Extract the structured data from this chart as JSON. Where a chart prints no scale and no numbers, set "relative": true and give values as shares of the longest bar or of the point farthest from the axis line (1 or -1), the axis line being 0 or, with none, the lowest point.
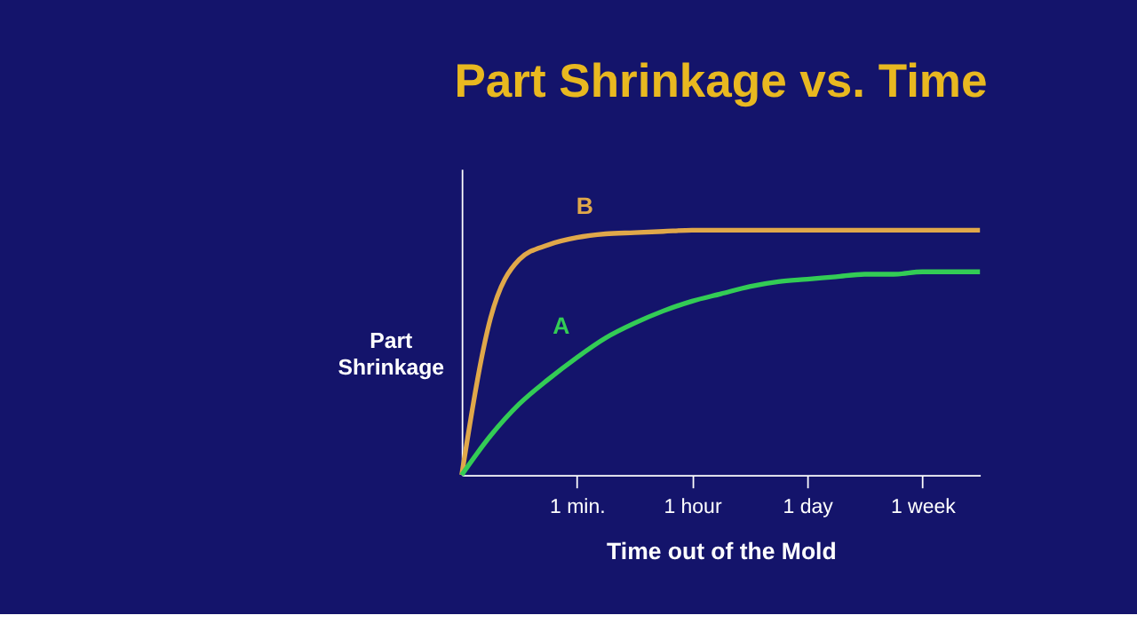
{
  "chart_data": {
    "type": "line",
    "title": "Part Shrinkage vs. Time",
    "xlabel": "Time out of the Mold",
    "ylabel": "Part Shrinkage",
    "relative": true,
    "legend": false,
    "grid": false,
    "marker": "none",
    "line_style": "solid",
    "categories": [
      null,
      null,
      null,
      null,
      "1 min.",
      null,
      null,
      null,
      "1 hour",
      null,
      null,
      null,
      "1 day",
      null,
      null,
      null,
      "1 week",
      null,
      null
    ],
    "series": [
      {
        "name": "B",
        "color": "#e0a84a",
        "values": [
          0,
          0.64,
          0.88,
          0.94,
          0.97,
          0.985,
          0.99,
          0.995,
          1,
          1,
          1,
          1,
          1,
          1,
          1,
          1,
          1,
          1,
          1
        ]
      },
      {
        "name": "A",
        "color": "#33cc55",
        "values": [
          0,
          0.16,
          0.29,
          0.39,
          0.48,
          0.56,
          0.62,
          0.67,
          0.71,
          0.74,
          0.77,
          0.79,
          0.8,
          0.81,
          0.82,
          0.82,
          0.83,
          0.83,
          0.83
        ]
      }
    ]
  }
}
